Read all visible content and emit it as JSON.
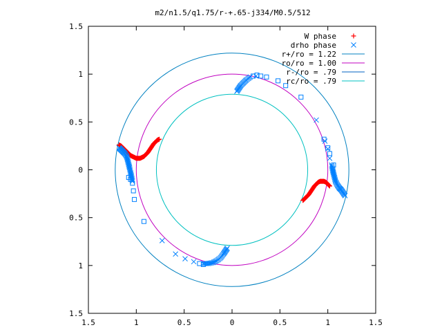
{
  "chart_data": {
    "type": "scatter",
    "title": "m2/n1.5/q1.75/r-+.65-j334/M0.5/512",
    "xlabel": "",
    "ylabel": "",
    "xlim": [
      -1.5,
      1.5
    ],
    "ylim": [
      -1.5,
      1.5
    ],
    "x_tick_values": [
      -1.5,
      -1,
      -0.5,
      0,
      0.5,
      1,
      1.5
    ],
    "x_tick_labels": [
      "1.5",
      "1",
      "0.5",
      "0",
      "0.5",
      "1",
      "1.5"
    ],
    "y_tick_values": [
      1.5,
      1,
      0.5,
      0,
      -0.5,
      -1,
      -1.5
    ],
    "y_tick_labels": [
      "1.5",
      "1",
      "0.5",
      "0",
      "0.5",
      "1",
      "1.5"
    ],
    "grid": false,
    "legend_position": "top-right",
    "legend": [
      {
        "label": "W phase",
        "marker": "plus",
        "color": "#ff0000"
      },
      {
        "label": "drho phase",
        "marker": "cross",
        "color": "#0080ff"
      },
      {
        "label": "r+/ro = 1.22",
        "marker": "line",
        "color": "#0080c0"
      },
      {
        "label": "ro/ro = 1.00",
        "marker": "line",
        "color": "#c000c0"
      },
      {
        "label": "r-/ro = .79",
        "marker": "line",
        "color": "#0060c0"
      },
      {
        "label": "rc/ro = .79",
        "marker": "line",
        "color": "#00c0c0"
      }
    ],
    "circles": [
      {
        "name": "r+/ro = 1.22",
        "radius": 1.22,
        "color": "#0080c0"
      },
      {
        "name": "ro/ro = 1.00",
        "radius": 1.0,
        "color": "#c000c0"
      },
      {
        "name": "rc/ro = .79",
        "radius": 0.79,
        "color": "#00c0c0"
      }
    ],
    "series": [
      {
        "name": "W phase",
        "marker": "plus",
        "color": "#ff0000",
        "points": [
          [
            -1.18,
            0.26
          ],
          [
            -1.16,
            0.25
          ],
          [
            -1.14,
            0.23
          ],
          [
            -1.12,
            0.21
          ],
          [
            -1.1,
            0.19
          ],
          [
            -1.08,
            0.17
          ],
          [
            -1.06,
            0.15
          ],
          [
            -1.04,
            0.14
          ],
          [
            -1.02,
            0.13
          ],
          [
            -1.0,
            0.12
          ],
          [
            -0.98,
            0.12
          ],
          [
            -0.96,
            0.12
          ],
          [
            -0.94,
            0.13
          ],
          [
            -0.92,
            0.14
          ],
          [
            -0.9,
            0.16
          ],
          [
            -0.88,
            0.18
          ],
          [
            -0.86,
            0.21
          ],
          [
            -0.84,
            0.24
          ],
          [
            -0.82,
            0.27
          ],
          [
            -0.8,
            0.29
          ],
          [
            -0.78,
            0.31
          ],
          [
            -0.76,
            0.32
          ],
          [
            0.74,
            -0.32
          ],
          [
            0.76,
            -0.3
          ],
          [
            0.78,
            -0.28
          ],
          [
            0.8,
            -0.26
          ],
          [
            0.82,
            -0.23
          ],
          [
            0.84,
            -0.2
          ],
          [
            0.86,
            -0.17
          ],
          [
            0.88,
            -0.15
          ],
          [
            0.9,
            -0.13
          ],
          [
            0.92,
            -0.12
          ],
          [
            0.94,
            -0.12
          ],
          [
            0.96,
            -0.12
          ],
          [
            0.98,
            -0.13
          ],
          [
            1.0,
            -0.15
          ],
          [
            1.02,
            -0.17
          ]
        ]
      },
      {
        "name": "drho phase",
        "marker": "cross",
        "color": "#0080ff",
        "points": [
          [
            -1.18,
            0.23
          ],
          [
            -1.16,
            0.21
          ],
          [
            -1.14,
            0.19
          ],
          [
            -1.12,
            0.17
          ],
          [
            -1.1,
            0.14
          ],
          [
            -1.09,
            0.1
          ],
          [
            -1.08,
            0.06
          ],
          [
            -1.07,
            0.02
          ],
          [
            -1.06,
            -0.03
          ],
          [
            -1.05,
            -0.07
          ],
          [
            -1.04,
            -0.12
          ],
          [
            -0.73,
            -0.74
          ],
          [
            -0.59,
            -0.88
          ],
          [
            -0.49,
            -0.93
          ],
          [
            -0.4,
            -0.96
          ],
          [
            -0.3,
            -0.98
          ],
          [
            -0.25,
            -0.98
          ],
          [
            -0.2,
            -0.97
          ],
          [
            -0.16,
            -0.95
          ],
          [
            -0.12,
            -0.92
          ],
          [
            -0.09,
            -0.88
          ],
          [
            -0.07,
            -0.85
          ],
          [
            -0.05,
            -0.82
          ],
          [
            0.05,
            0.82
          ],
          [
            0.07,
            0.85
          ],
          [
            0.09,
            0.88
          ],
          [
            0.12,
            0.91
          ],
          [
            0.15,
            0.94
          ],
          [
            0.19,
            0.97
          ],
          [
            0.25,
            0.98
          ],
          [
            0.88,
            0.52
          ],
          [
            0.97,
            0.3
          ],
          [
            1.0,
            0.22
          ],
          [
            1.02,
            0.12
          ],
          [
            1.04,
            0.05
          ],
          [
            1.05,
            0.0
          ],
          [
            1.06,
            -0.04
          ],
          [
            1.07,
            -0.08
          ],
          [
            1.08,
            -0.12
          ],
          [
            1.1,
            -0.16
          ],
          [
            1.12,
            -0.19
          ],
          [
            1.14,
            -0.21
          ],
          [
            1.16,
            -0.24
          ],
          [
            1.18,
            -0.27
          ]
        ]
      },
      {
        "name": "r-/ro = .79",
        "marker": "square",
        "color": "#0080ff",
        "points": [
          [
            -1.08,
            -0.08
          ],
          [
            -1.06,
            -0.1
          ],
          [
            -1.04,
            -0.14
          ],
          [
            -1.03,
            -0.22
          ],
          [
            -1.02,
            -0.31
          ],
          [
            -0.92,
            -0.54
          ],
          [
            -0.34,
            -0.98
          ],
          [
            -0.3,
            -0.99
          ],
          [
            0.22,
            0.98
          ],
          [
            0.26,
            0.99
          ],
          [
            0.3,
            0.98
          ],
          [
            0.36,
            0.97
          ],
          [
            0.48,
            0.93
          ],
          [
            0.56,
            0.88
          ],
          [
            0.72,
            0.76
          ],
          [
            0.96,
            0.32
          ],
          [
            1.0,
            0.23
          ],
          [
            1.02,
            0.17
          ],
          [
            1.06,
            0.05
          ]
        ]
      }
    ]
  }
}
